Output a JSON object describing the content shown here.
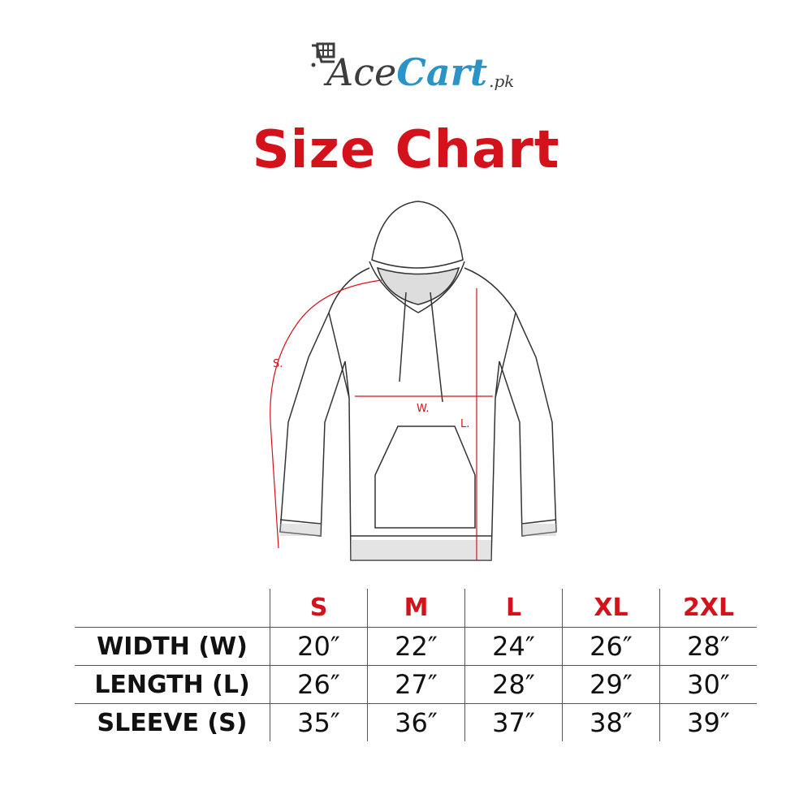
{
  "logo": {
    "part1": "Ace",
    "part2": "Cart",
    "suffix": ".pk"
  },
  "title": "Size Chart",
  "diagram": {
    "sleeve_label": "S.",
    "width_label": "W.",
    "length_label": "L."
  },
  "table": {
    "sizes": [
      "S",
      "M",
      "L",
      "XL",
      "2XL"
    ],
    "rows": [
      {
        "label": "WIDTH (W)",
        "values": [
          "20″",
          "22″",
          "24″",
          "26″",
          "28″"
        ]
      },
      {
        "label": "LENGTH (L)",
        "values": [
          "26″",
          "27″",
          "28″",
          "29″",
          "30″"
        ]
      },
      {
        "label": "SLEEVE (S)",
        "values": [
          "35″",
          "36″",
          "37″",
          "38″",
          "39″"
        ]
      }
    ]
  },
  "colors": {
    "accent": "#d4121b",
    "logo_blue": "#2a93c8",
    "logo_gray": "#3d3d3d"
  }
}
